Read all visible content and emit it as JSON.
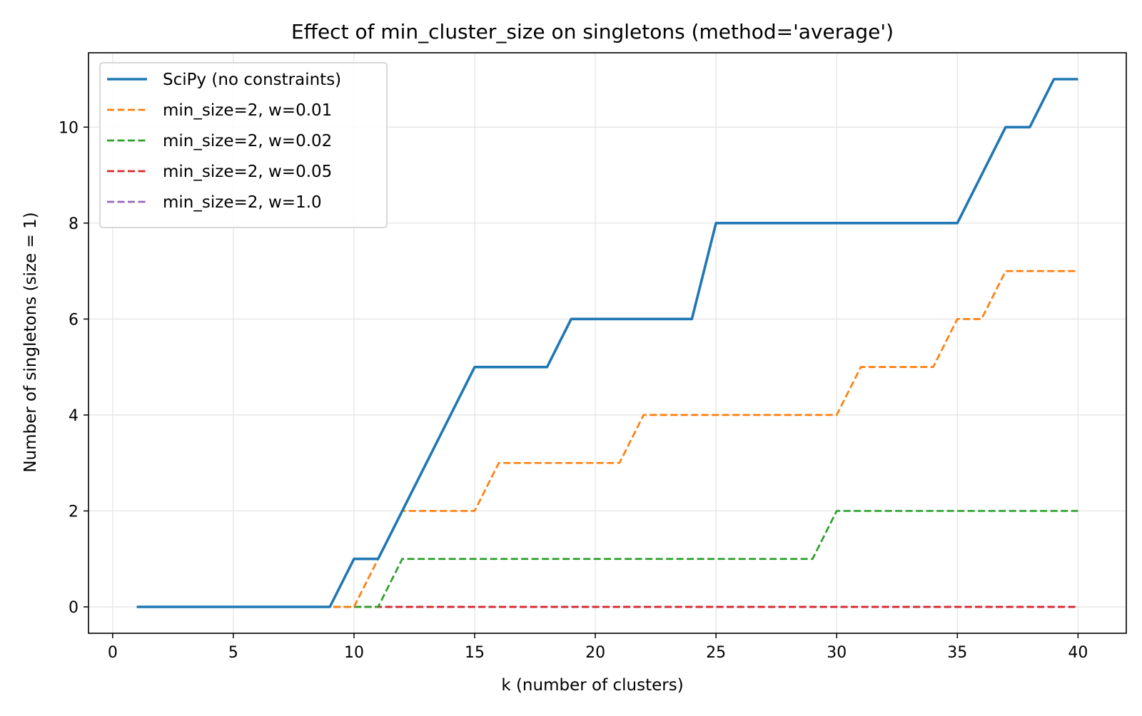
{
  "chart_data": {
    "type": "line",
    "title": "Effect of min_cluster_size on singletons (method='average')",
    "xlabel": "k (number of clusters)",
    "ylabel": "Number of singletons (size = 1)",
    "xlim": [
      -1,
      42
    ],
    "ylim": [
      -0.55,
      11.55
    ],
    "xticks": [
      0,
      5,
      10,
      15,
      20,
      25,
      30,
      35,
      40
    ],
    "yticks": [
      0,
      2,
      4,
      6,
      8,
      10
    ],
    "xtick_labels": [
      "0",
      "5",
      "10",
      "15",
      "20",
      "25",
      "30",
      "35",
      "40"
    ],
    "ytick_labels": [
      "0",
      "2",
      "4",
      "6",
      "8",
      "10"
    ],
    "grid": true,
    "legend_position": "top-left",
    "x": [
      1,
      2,
      3,
      4,
      5,
      6,
      7,
      8,
      9,
      10,
      11,
      12,
      13,
      14,
      15,
      16,
      17,
      18,
      19,
      20,
      21,
      22,
      23,
      24,
      25,
      26,
      27,
      28,
      29,
      30,
      31,
      32,
      33,
      34,
      35,
      36,
      37,
      38,
      39,
      40
    ],
    "series": [
      {
        "name": "SciPy (no constraints)",
        "color": "#1f77b4",
        "style": "solid",
        "values": [
          0,
          0,
          0,
          0,
          0,
          0,
          0,
          0,
          0,
          1,
          1,
          2,
          3,
          4,
          5,
          5,
          5,
          5,
          6,
          6,
          6,
          6,
          6,
          6,
          8,
          8,
          8,
          8,
          8,
          8,
          8,
          8,
          8,
          8,
          8,
          9,
          10,
          10,
          11,
          11
        ]
      },
      {
        "name": "min_size=2, w=0.01",
        "color": "#ff7f0e",
        "style": "dashed",
        "values": [
          0,
          0,
          0,
          0,
          0,
          0,
          0,
          0,
          0,
          0,
          1,
          2,
          2,
          2,
          2,
          3,
          3,
          3,
          3,
          3,
          3,
          4,
          4,
          4,
          4,
          4,
          4,
          4,
          4,
          4,
          5,
          5,
          5,
          5,
          6,
          6,
          7,
          7,
          7,
          7
        ]
      },
      {
        "name": "min_size=2, w=0.02",
        "color": "#2ca02c",
        "style": "dashed",
        "values": [
          0,
          0,
          0,
          0,
          0,
          0,
          0,
          0,
          0,
          0,
          0,
          1,
          1,
          1,
          1,
          1,
          1,
          1,
          1,
          1,
          1,
          1,
          1,
          1,
          1,
          1,
          1,
          1,
          1,
          2,
          2,
          2,
          2,
          2,
          2,
          2,
          2,
          2,
          2,
          2
        ]
      },
      {
        "name": "min_size=2, w=0.05",
        "color": "#d62728",
        "style": "dashed",
        "values": [
          0,
          0,
          0,
          0,
          0,
          0,
          0,
          0,
          0,
          0,
          0,
          0,
          0,
          0,
          0,
          0,
          0,
          0,
          0,
          0,
          0,
          0,
          0,
          0,
          0,
          0,
          0,
          0,
          0,
          0,
          0,
          0,
          0,
          0,
          0,
          0,
          0,
          0,
          0,
          0
        ]
      },
      {
        "name": "min_size=2, w=1.0",
        "color": "#9467bd",
        "style": "dashed",
        "values": [
          0,
          0,
          0,
          0,
          0,
          0,
          0,
          0,
          0,
          0,
          0,
          0,
          0,
          0,
          0,
          0,
          0,
          0,
          0,
          0,
          0,
          0,
          0,
          0,
          0,
          0,
          0,
          0,
          0,
          0,
          0,
          0,
          0,
          0,
          0,
          0,
          0,
          0,
          0,
          0
        ]
      }
    ]
  }
}
